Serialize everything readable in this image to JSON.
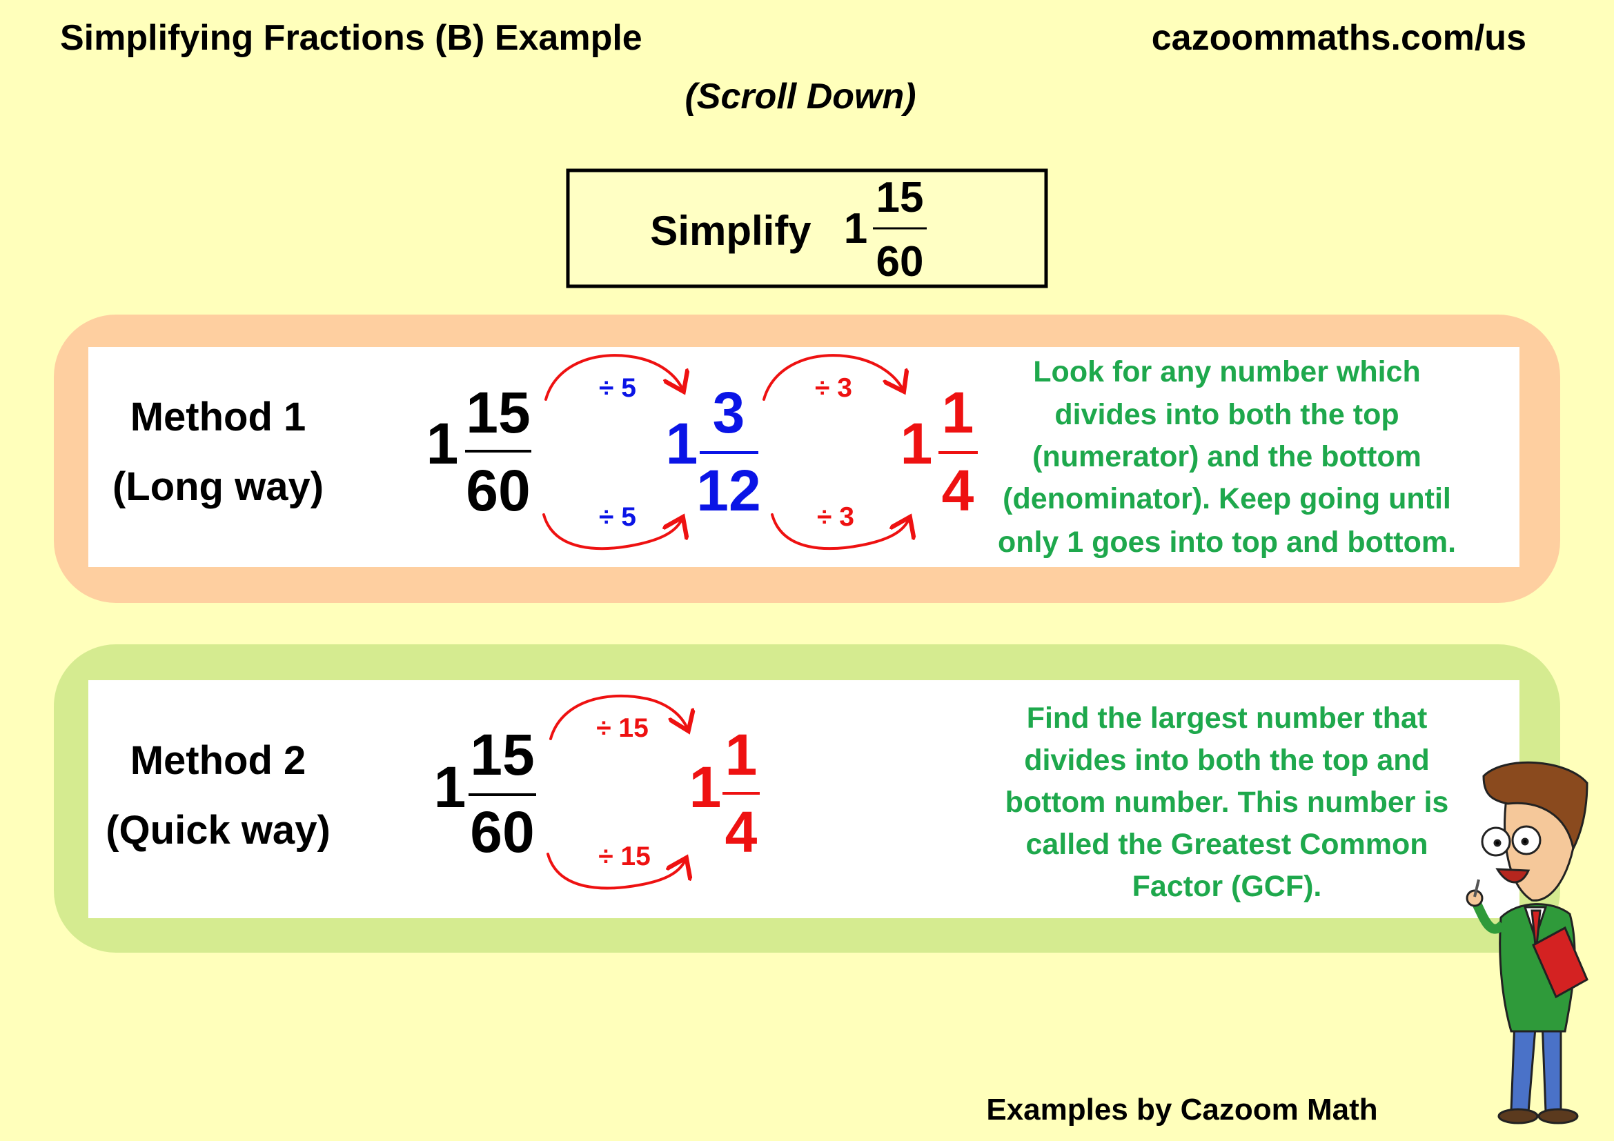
{
  "header": {
    "title": "Simplifying Fractions (B) Example",
    "site": "cazoommaths.com/us",
    "scroll_hint": "(Scroll Down)"
  },
  "problem": {
    "label": "Simplify",
    "whole": "1",
    "numerator": "15",
    "denominator": "60"
  },
  "method1": {
    "title": "Method 1",
    "subtitle": "(Long way)",
    "start": {
      "whole": "1",
      "numerator": "15",
      "denominator": "60"
    },
    "step1": {
      "whole": "1",
      "numerator": "3",
      "denominator": "12",
      "op_top": "÷ 5",
      "op_bottom": "÷ 5"
    },
    "step2": {
      "whole": "1",
      "numerator": "1",
      "denominator": "4",
      "op_top": "÷ 3",
      "op_bottom": "÷ 3"
    },
    "explanation": [
      "Look for any number which",
      "divides into both the top",
      "(numerator) and the bottom",
      "(denominator). Keep going until",
      "only 1 goes into top and bottom."
    ]
  },
  "method2": {
    "title": "Method 2",
    "subtitle": "(Quick way)",
    "start": {
      "whole": "1",
      "numerator": "15",
      "denominator": "60"
    },
    "result": {
      "whole": "1",
      "numerator": "1",
      "denominator": "4",
      "op_top": "÷ 15",
      "op_bottom": "÷ 15"
    },
    "explanation": [
      "Find the largest number that",
      "divides into both the top and",
      "bottom number. This number is",
      "called the Greatest Common",
      "Factor (GCF)."
    ]
  },
  "footer": {
    "credit": "Examples by Cazoom Math"
  },
  "colors": {
    "background": "#ffffbb",
    "method1_frame": "#fecfa0",
    "method2_frame": "#d5eb90",
    "explanation": "#1ea84c",
    "step1": "#0a14e6",
    "step2": "#ee1111",
    "arrows": "#ee1111"
  }
}
